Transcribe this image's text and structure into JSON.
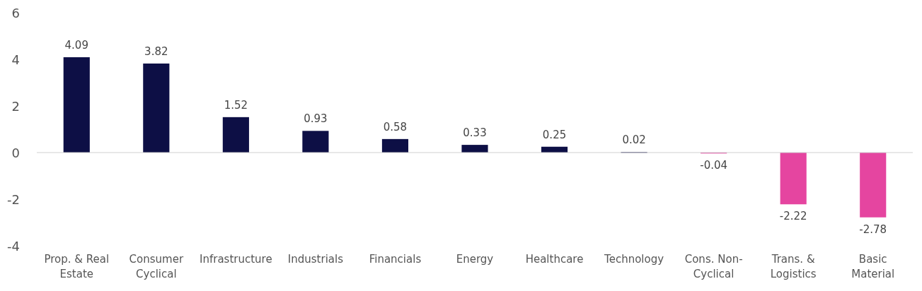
{
  "chart_data": {
    "type": "bar",
    "categories": [
      "Prop. & Real Estate",
      "Consumer Cyclical",
      "Infrastructure",
      "Industrials",
      "Financials",
      "Energy",
      "Healthcare",
      "Technology",
      "Cons. Non-Cyclical",
      "Trans. & Logistics",
      "Basic Material"
    ],
    "values": [
      4.09,
      3.82,
      1.52,
      0.93,
      0.58,
      0.33,
      0.25,
      0.02,
      -0.04,
      -2.22,
      -2.78
    ],
    "colors": [
      "#0d0f45",
      "#0d0f45",
      "#0d0f45",
      "#0d0f45",
      "#0d0f45",
      "#0d0f45",
      "#0d0f45",
      "#0d0f45",
      "#e545a0",
      "#e545a0",
      "#e545a0"
    ],
    "ylim": [
      -4,
      6
    ],
    "yticks": [
      -4,
      -2,
      0,
      2,
      4,
      6
    ],
    "data_labels": true
  }
}
